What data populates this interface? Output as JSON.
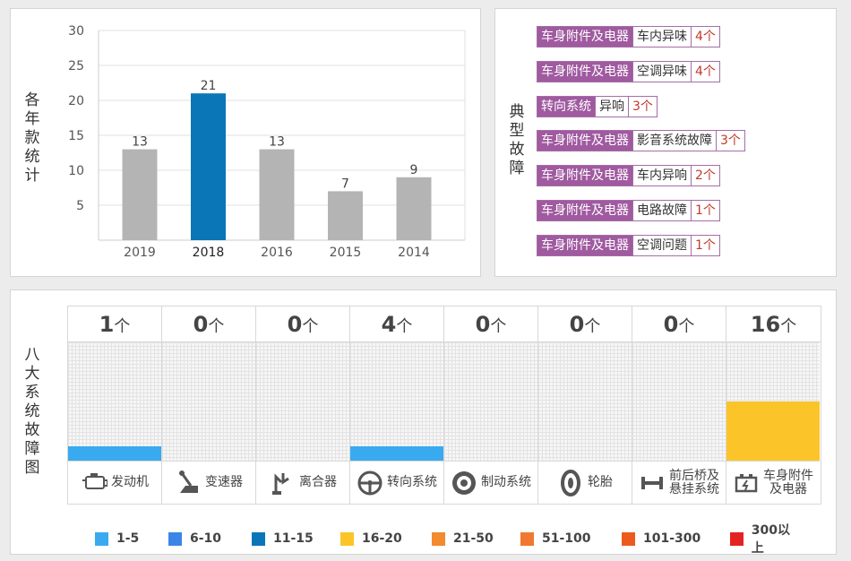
{
  "year_panel": {
    "title": "各年款统计",
    "chart_data": {
      "type": "bar",
      "categories": [
        "2019",
        "2018",
        "2016",
        "2015",
        "2014"
      ],
      "values": [
        13,
        21,
        13,
        7,
        9
      ],
      "highlight_index": 1,
      "ylim": [
        0,
        30
      ],
      "yticks": [
        5,
        10,
        15,
        20,
        25,
        30
      ],
      "colors": {
        "normal": "#b4b4b4",
        "highlight": "#0a76b8"
      }
    }
  },
  "fault_panel": {
    "title": "典型故障",
    "items": [
      {
        "category": "车身附件及电器",
        "fault": "车内异味",
        "count": "4个"
      },
      {
        "category": "车身附件及电器",
        "fault": "空调异味",
        "count": "4个"
      },
      {
        "category": "转向系统",
        "fault": "异响",
        "count": "3个"
      },
      {
        "category": "车身附件及电器",
        "fault": "影音系统故障",
        "count": "3个"
      },
      {
        "category": "车身附件及电器",
        "fault": "车内异响",
        "count": "2个"
      },
      {
        "category": "车身附件及电器",
        "fault": "电路故障",
        "count": "1个"
      },
      {
        "category": "车身附件及电器",
        "fault": "空调问题",
        "count": "1个"
      }
    ]
  },
  "system_panel": {
    "title": "八大系统故障图",
    "unit": "个",
    "systems": [
      {
        "name": "发动机",
        "count": 1,
        "icon": "engine-icon",
        "bar_level": 0.12,
        "color": "#3aaaf0"
      },
      {
        "name": "变速器",
        "count": 0,
        "icon": "gear-shift-icon",
        "bar_level": 0,
        "color": "#3aaaf0"
      },
      {
        "name": "离合器",
        "count": 0,
        "icon": "clutch-icon",
        "bar_level": 0,
        "color": "#3aaaf0"
      },
      {
        "name": "转向系统",
        "count": 4,
        "icon": "steering-wheel-icon",
        "bar_level": 0.12,
        "color": "#3aaaf0"
      },
      {
        "name": "制动系统",
        "count": 0,
        "icon": "brake-disc-icon",
        "bar_level": 0,
        "color": "#3aaaf0"
      },
      {
        "name": "轮胎",
        "count": 0,
        "icon": "tire-icon",
        "bar_level": 0,
        "color": "#3aaaf0"
      },
      {
        "name": "前后桥及悬挂系统",
        "count": 0,
        "icon": "axle-suspension-icon",
        "bar_level": 0,
        "color": "#3aaaf0",
        "label_lines": [
          "前后桥及",
          "悬挂系统"
        ]
      },
      {
        "name": "车身附件及电器",
        "count": 16,
        "icon": "battery-icon",
        "bar_level": 0.5,
        "color": "#fbc52a",
        "label_lines": [
          "车身附件",
          "及电器"
        ]
      }
    ],
    "legend": [
      {
        "label": "1-5",
        "color": "#3aaaf0"
      },
      {
        "label": "6-10",
        "color": "#3a85e8"
      },
      {
        "label": "11-15",
        "color": "#0a76b8"
      },
      {
        "label": "16-20",
        "color": "#fbc52a"
      },
      {
        "label": "21-50",
        "color": "#f28a2e"
      },
      {
        "label": "51-100",
        "color": "#f07830"
      },
      {
        "label": "101-300",
        "color": "#ec5a1e"
      },
      {
        "label": "300以上",
        "color": "#e52222"
      }
    ]
  }
}
